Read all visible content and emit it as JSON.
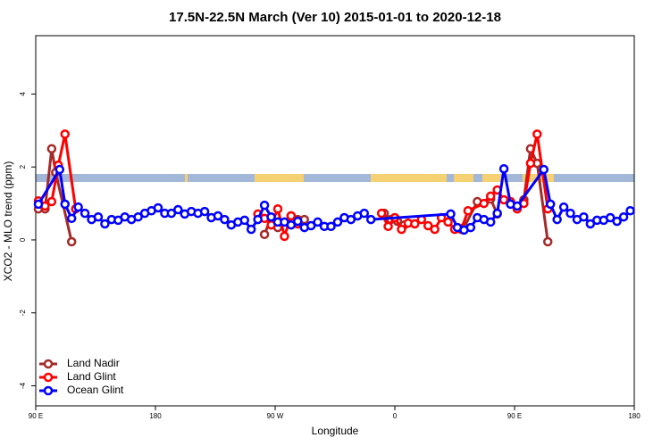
{
  "chart_data": {
    "type": "line",
    "title": "17.5N-22.5N March (Ver 10)   2015-01-01 to 2020-12-18",
    "x_label": "Longitude",
    "y_label": "XCO2 - MLO trend (ppm)",
    "xlim": [
      90,
      540
    ],
    "ylim": [
      -4.55,
      5.6
    ],
    "xticks": [
      {
        "value": 90,
        "label": "90 E"
      },
      180,
      {
        "value": 270,
        "label": "90 W"
      },
      {
        "value": 360,
        "label": "0"
      },
      {
        "value": 450,
        "label": "90 E"
      },
      {
        "value": 540,
        "label": "180"
      }
    ],
    "yticks": [
      -4,
      -2,
      0,
      2,
      4
    ],
    "legend": "bottom-left",
    "series": [
      {
        "name": "Land Nadir",
        "color": "#a52a2a",
        "x": [
          92,
          97,
          102,
          105,
          117,
          240,
          262,
          267,
          272,
          282,
          287,
          292,
          330,
          352,
          357,
          362,
          367,
          390,
          407,
          412,
          422,
          432,
          437,
          445,
          457,
          462,
          467,
          475
        ],
        "values": [
          0.85,
          0.85,
          2.5,
          1.85,
          -0.05,
          null,
          0.15,
          0.61,
          0.34,
          0.66,
          0.56,
          0.56,
          null,
          0.73,
          0.56,
          0.51,
          0.41,
          null,
          0.34,
          0.34,
          1.05,
          1.12,
          0.71,
          null,
          1.1,
          2.5,
          2.1,
          -0.05
        ]
      },
      {
        "name": "Land Glint",
        "color": "#ff0000",
        "x": [
          92,
          97,
          102,
          107,
          112,
          120,
          240,
          257,
          262,
          267,
          272,
          277,
          282,
          287,
          320,
          350,
          355,
          360,
          365,
          370,
          375,
          380,
          385,
          390,
          395,
          400,
          405,
          410,
          415,
          427,
          432,
          437,
          442,
          447,
          452,
          457,
          462,
          467,
          475
        ],
        "values": [
          1.07,
          0.93,
          1.05,
          2.05,
          2.9,
          0.85,
          null,
          0.71,
          0.59,
          0.41,
          0.85,
          0.1,
          0.66,
          0.44,
          null,
          0.73,
          0.37,
          0.61,
          0.29,
          0.46,
          0.44,
          0.56,
          0.39,
          0.29,
          0.61,
          0.49,
          0.29,
          0.29,
          0.8,
          1.0,
          1.2,
          1.37,
          1.1,
          1.05,
          0.85,
          1.0,
          2.1,
          2.9,
          0.85
        ]
      },
      {
        "name": "Ocean Glint",
        "color": "#0000ff",
        "x": [
          92,
          108,
          112,
          117,
          122,
          127,
          132,
          137,
          142,
          147,
          152,
          157,
          162,
          167,
          172,
          177,
          182,
          187,
          192,
          197,
          202,
          207,
          212,
          217,
          222,
          227,
          232,
          237,
          242,
          247,
          252,
          257,
          262,
          267,
          272,
          277,
          282,
          287,
          292,
          297,
          302,
          307,
          312,
          317,
          322,
          327,
          332,
          337,
          342,
          402,
          407,
          412,
          417,
          422,
          427,
          432,
          437,
          442,
          447,
          452,
          472,
          477,
          482,
          487,
          492,
          497,
          502,
          507,
          512,
          517,
          522,
          527,
          532,
          537
        ],
        "values": [
          0.98,
          1.93,
          0.98,
          0.59,
          0.9,
          0.73,
          0.56,
          0.63,
          0.44,
          0.56,
          0.54,
          0.63,
          0.56,
          0.63,
          0.73,
          0.8,
          0.88,
          0.73,
          0.73,
          0.83,
          0.71,
          0.78,
          0.73,
          0.78,
          0.61,
          0.66,
          0.56,
          0.41,
          0.49,
          0.54,
          0.29,
          0.56,
          0.95,
          0.63,
          0.49,
          0.49,
          0.41,
          0.51,
          0.34,
          0.39,
          0.49,
          0.37,
          0.37,
          0.49,
          0.61,
          0.56,
          0.66,
          0.73,
          0.56,
          0.71,
          0.34,
          0.27,
          0.34,
          0.61,
          0.56,
          0.49,
          0.73,
          1.95,
          0.98,
          0.93,
          1.93,
          0.98,
          0.56,
          0.9,
          0.73,
          0.56,
          0.63,
          0.44,
          0.54,
          0.54,
          0.61,
          0.51,
          0.63,
          0.8
        ]
      }
    ]
  }
}
